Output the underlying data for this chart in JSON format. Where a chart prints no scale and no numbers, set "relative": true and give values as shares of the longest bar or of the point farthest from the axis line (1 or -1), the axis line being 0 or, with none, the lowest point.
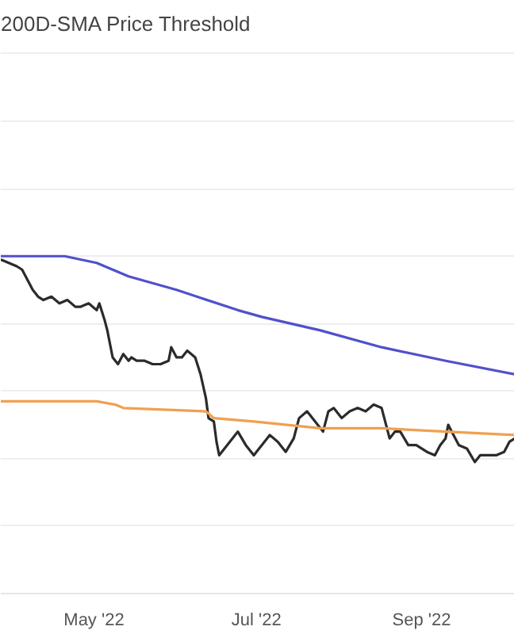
{
  "chart_data": {
    "type": "line",
    "title": "200D-SMA Price Threshold",
    "relative": true,
    "grid": "y",
    "line_style": "solid",
    "xlim": [
      "2022-03-27",
      "2022-10-06"
    ],
    "xticks": [
      {
        "value": "2022-05-01",
        "label": "May '22"
      },
      {
        "value": "2022-07-01",
        "label": "Jul '22"
      },
      {
        "value": "2022-09-01",
        "label": "Sep '22"
      }
    ],
    "series": [
      {
        "color": "#2b2b2b",
        "x": [
          "2022-03-27",
          "2022-03-30",
          "2022-04-02",
          "2022-04-04",
          "2022-04-06",
          "2022-04-08",
          "2022-04-10",
          "2022-04-12",
          "2022-04-15",
          "2022-04-18",
          "2022-04-21",
          "2022-04-24",
          "2022-04-26",
          "2022-04-29",
          "2022-05-02",
          "2022-05-03",
          "2022-05-05",
          "2022-05-06",
          "2022-05-08",
          "2022-05-09",
          "2022-05-10",
          "2022-05-12",
          "2022-05-14",
          "2022-05-15",
          "2022-05-17",
          "2022-05-20",
          "2022-05-23",
          "2022-05-26",
          "2022-05-29",
          "2022-05-30",
          "2022-06-01",
          "2022-06-03",
          "2022-06-05",
          "2022-06-08",
          "2022-06-10",
          "2022-06-12",
          "2022-06-13",
          "2022-06-15",
          "2022-06-16",
          "2022-06-17",
          "2022-06-19",
          "2022-06-21",
          "2022-06-24",
          "2022-06-27",
          "2022-06-30",
          "2022-07-03",
          "2022-07-06",
          "2022-07-09",
          "2022-07-12",
          "2022-07-15",
          "2022-07-17",
          "2022-07-20",
          "2022-07-23",
          "2022-07-26",
          "2022-07-28",
          "2022-07-30",
          "2022-08-02",
          "2022-08-05",
          "2022-08-08",
          "2022-08-11",
          "2022-08-14",
          "2022-08-17",
          "2022-08-20",
          "2022-08-22",
          "2022-08-24",
          "2022-08-27",
          "2022-08-30",
          "2022-09-03",
          "2022-09-06",
          "2022-09-08",
          "2022-09-10",
          "2022-09-11",
          "2022-09-13",
          "2022-09-15",
          "2022-09-18",
          "2022-09-21",
          "2022-09-23",
          "2022-09-26",
          "2022-09-29",
          "2022-10-02",
          "2022-10-04",
          "2022-10-06"
        ],
        "values": [
          0.99,
          0.98,
          0.97,
          0.96,
          0.93,
          0.9,
          0.88,
          0.87,
          0.88,
          0.86,
          0.87,
          0.85,
          0.85,
          0.86,
          0.84,
          0.86,
          0.81,
          0.78,
          0.7,
          0.69,
          0.68,
          0.71,
          0.69,
          0.7,
          0.69,
          0.69,
          0.68,
          0.68,
          0.69,
          0.73,
          0.7,
          0.7,
          0.72,
          0.7,
          0.65,
          0.58,
          0.52,
          0.51,
          0.45,
          0.41,
          0.43,
          0.45,
          0.48,
          0.44,
          0.41,
          0.44,
          0.47,
          0.45,
          0.42,
          0.46,
          0.52,
          0.54,
          0.51,
          0.48,
          0.54,
          0.55,
          0.52,
          0.54,
          0.55,
          0.54,
          0.56,
          0.55,
          0.46,
          0.48,
          0.48,
          0.44,
          0.44,
          0.42,
          0.41,
          0.44,
          0.46,
          0.5,
          0.47,
          0.44,
          0.43,
          0.39,
          0.41,
          0.41,
          0.41,
          0.42,
          0.45,
          0.46
        ]
      },
      {
        "color": "#f0a050",
        "x": [
          "2022-03-27",
          "2022-05-02",
          "2022-05-09",
          "2022-05-12",
          "2022-06-12",
          "2022-06-15",
          "2022-06-30",
          "2022-07-25",
          "2022-08-17",
          "2022-09-10",
          "2022-10-06"
        ],
        "values": [
          0.57,
          0.57,
          0.56,
          0.55,
          0.54,
          0.52,
          0.51,
          0.49,
          0.49,
          0.48,
          0.47
        ]
      },
      {
        "color": "#5050cc",
        "x": [
          "2022-03-27",
          "2022-04-20",
          "2022-05-02",
          "2022-05-14",
          "2022-06-01",
          "2022-06-24",
          "2022-07-03",
          "2022-07-25",
          "2022-08-17",
          "2022-09-10",
          "2022-10-06"
        ],
        "values": [
          1.0,
          1.0,
          0.98,
          0.94,
          0.9,
          0.84,
          0.82,
          0.78,
          0.73,
          0.69,
          0.65
        ]
      }
    ]
  }
}
